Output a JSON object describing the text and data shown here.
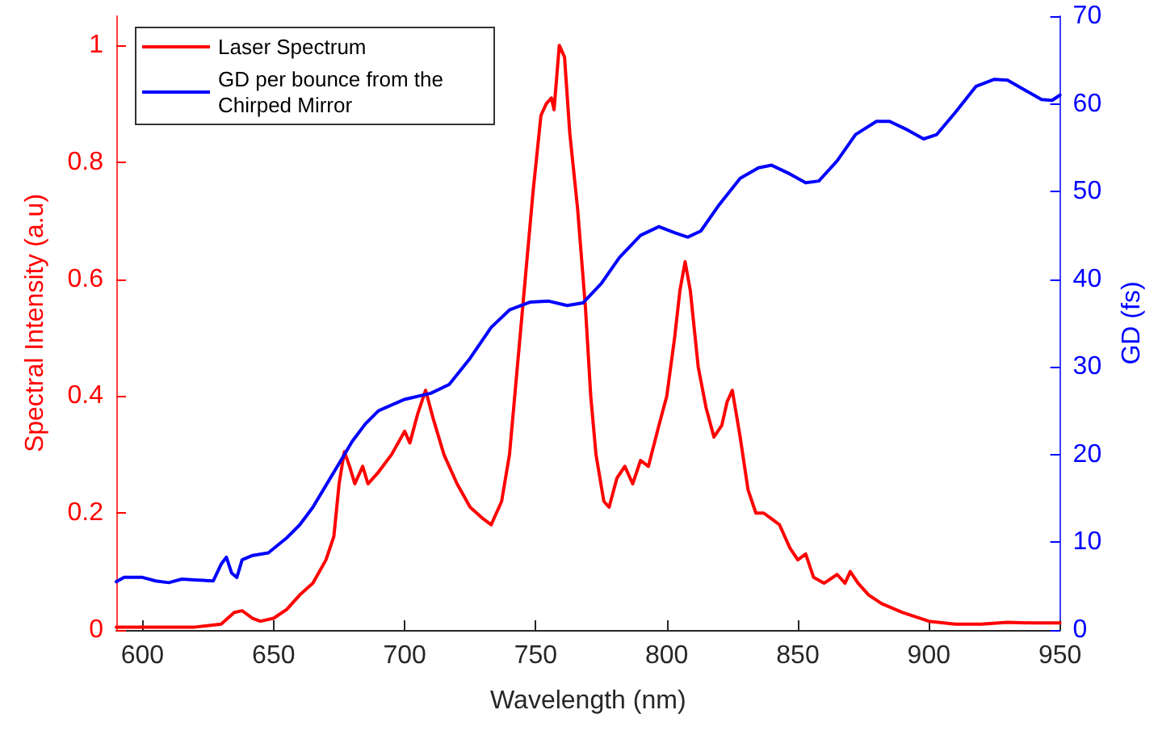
{
  "chart_data": {
    "type": "line",
    "xlabel": "Wavelength (nm)",
    "ylabel": "Spectral Intensity (a.u)",
    "y2label": "GD (fs)",
    "xlim": [
      590,
      950
    ],
    "xticks": [
      600,
      650,
      700,
      750,
      800,
      850,
      900,
      950
    ],
    "ylim": [
      0,
      1.05
    ],
    "yticks": [
      0,
      0.2,
      0.4,
      0.6,
      0.8,
      1
    ],
    "y2lim": [
      0,
      70
    ],
    "y2ticks": [
      0,
      10,
      20,
      30,
      40,
      50,
      60,
      70
    ],
    "grid": false,
    "legend": "top left",
    "marker": "none",
    "line_style": "solid",
    "series": [
      {
        "name": "Laser Spectrum",
        "color": "#ff0000",
        "x": [
          590,
          620,
          630,
          635,
          638,
          642,
          645,
          650,
          655,
          660,
          665,
          670,
          673,
          675,
          677,
          679,
          681,
          684,
          686,
          690,
          695,
          700,
          702,
          705,
          708,
          711,
          715,
          720,
          725,
          730,
          733,
          737,
          740,
          743,
          746,
          749,
          752,
          754,
          756,
          757,
          759,
          761,
          763,
          766,
          769,
          771,
          773,
          776,
          778,
          781,
          784,
          787,
          790,
          793,
          797,
          800,
          803,
          805,
          807,
          809,
          812,
          815,
          818,
          821,
          823,
          825,
          828,
          831,
          834,
          837,
          840,
          843,
          847,
          850,
          853,
          856,
          860,
          865,
          868,
          870,
          873,
          877,
          882,
          890,
          900,
          910,
          920,
          930,
          940,
          950
        ],
        "values": [
          0.005,
          0.005,
          0.01,
          0.03,
          0.033,
          0.02,
          0.015,
          0.02,
          0.035,
          0.06,
          0.08,
          0.12,
          0.16,
          0.25,
          0.305,
          0.28,
          0.25,
          0.28,
          0.25,
          0.27,
          0.3,
          0.34,
          0.32,
          0.37,
          0.41,
          0.36,
          0.3,
          0.25,
          0.21,
          0.19,
          0.18,
          0.22,
          0.3,
          0.45,
          0.6,
          0.75,
          0.88,
          0.9,
          0.91,
          0.89,
          1.0,
          0.98,
          0.85,
          0.72,
          0.55,
          0.4,
          0.3,
          0.22,
          0.21,
          0.26,
          0.28,
          0.25,
          0.29,
          0.28,
          0.35,
          0.4,
          0.5,
          0.58,
          0.63,
          0.58,
          0.45,
          0.38,
          0.33,
          0.35,
          0.39,
          0.41,
          0.33,
          0.24,
          0.2,
          0.2,
          0.19,
          0.18,
          0.14,
          0.12,
          0.13,
          0.09,
          0.08,
          0.095,
          0.08,
          0.1,
          0.08,
          0.06,
          0.045,
          0.03,
          0.015,
          0.01,
          0.01,
          0.013,
          0.012,
          0.012
        ]
      },
      {
        "name": "GD per bounce from the Chirped Mirror",
        "color": "#0000ff",
        "axis": "y2",
        "x": [
          590,
          593,
          600,
          605,
          610,
          615,
          620,
          627,
          630,
          632,
          634,
          636,
          638,
          642,
          648,
          655,
          660,
          665,
          670,
          675,
          680,
          685,
          690,
          700,
          710,
          717,
          725,
          733,
          740,
          748,
          755,
          762,
          768,
          775,
          782,
          790,
          797,
          803,
          808,
          813,
          820,
          828,
          835,
          840,
          847,
          853,
          858,
          865,
          872,
          880,
          885,
          892,
          898,
          903,
          910,
          918,
          925,
          930,
          937,
          943,
          947,
          950
        ],
        "values": [
          5.5,
          6,
          6,
          5.6,
          5.4,
          5.8,
          5.7,
          5.6,
          7.5,
          8.3,
          6.5,
          6,
          8,
          8.5,
          8.8,
          10.5,
          12,
          14,
          16.5,
          19,
          21.5,
          23.5,
          25,
          26.3,
          27,
          28,
          31,
          34.5,
          36.5,
          37.4,
          37.5,
          37,
          37.3,
          39.5,
          42.5,
          45,
          46,
          45.3,
          44.8,
          45.5,
          48.5,
          51.5,
          52.7,
          53,
          52,
          51,
          51.2,
          53.5,
          56.5,
          58,
          58,
          57,
          56,
          56.5,
          59,
          62,
          62.8,
          62.7,
          61.5,
          60.5,
          60.4,
          61
        ]
      }
    ]
  }
}
